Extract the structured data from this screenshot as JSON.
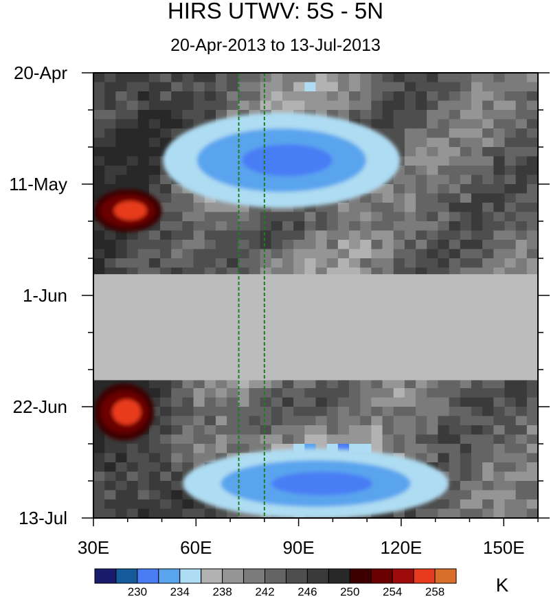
{
  "chart_data": {
    "type": "heatmap",
    "title": "HIRS UTWV: 5S - 5N",
    "subtitle": "20-Apr-2013 to 13-Jul-2013",
    "xlim": [
      30,
      160
    ],
    "x_ticks": [
      30,
      60,
      90,
      120,
      150
    ],
    "x_tick_labels": [
      "30E",
      "60E",
      "90E",
      "120E",
      "150E"
    ],
    "y_ticks": [
      "20-Apr",
      "11-May",
      "1-Jun",
      "22-Jun",
      "13-Jul"
    ],
    "ylim": [
      "2013-04-20",
      "2013-07-13"
    ],
    "colorbar": {
      "unit": "K",
      "labels": [
        "230",
        "234",
        "238",
        "242",
        "246",
        "250",
        "254",
        "258"
      ],
      "colors": [
        "#1b1b6e",
        "#155a9a",
        "#4a7df5",
        "#5aa4ee",
        "#aedcf2",
        "#b2b2b2",
        "#959595",
        "#7b7b7b",
        "#646464",
        "#4e4e4e",
        "#3a3a3a",
        "#282828",
        "#3d0000",
        "#6b0000",
        "#9e0b0b",
        "#e83a1e",
        "#d8702a"
      ]
    },
    "reference_lines": {
      "color": "#1e7d1e",
      "x": [
        72.5,
        80
      ]
    },
    "missing_data": {
      "from": "2013-05-28",
      "to": "2013-06-17",
      "color": "#bcbcbc"
    },
    "features": [
      {
        "label": "254-258",
        "lon": [
          32,
          48
        ],
        "dates": [
          "2013-05-13",
          "2013-05-19"
        ]
      },
      {
        "label": "254-258",
        "lon": [
          32,
          46
        ],
        "dates": [
          "2013-06-19",
          "2013-06-27"
        ]
      },
      {
        "label": "230-238",
        "lon": [
          52,
          118
        ],
        "dates": [
          "2013-04-29",
          "2013-05-14"
        ]
      },
      {
        "label": "230-238",
        "lon": [
          58,
          132
        ],
        "dates": [
          "2013-07-01",
          "2013-07-12"
        ]
      }
    ]
  }
}
